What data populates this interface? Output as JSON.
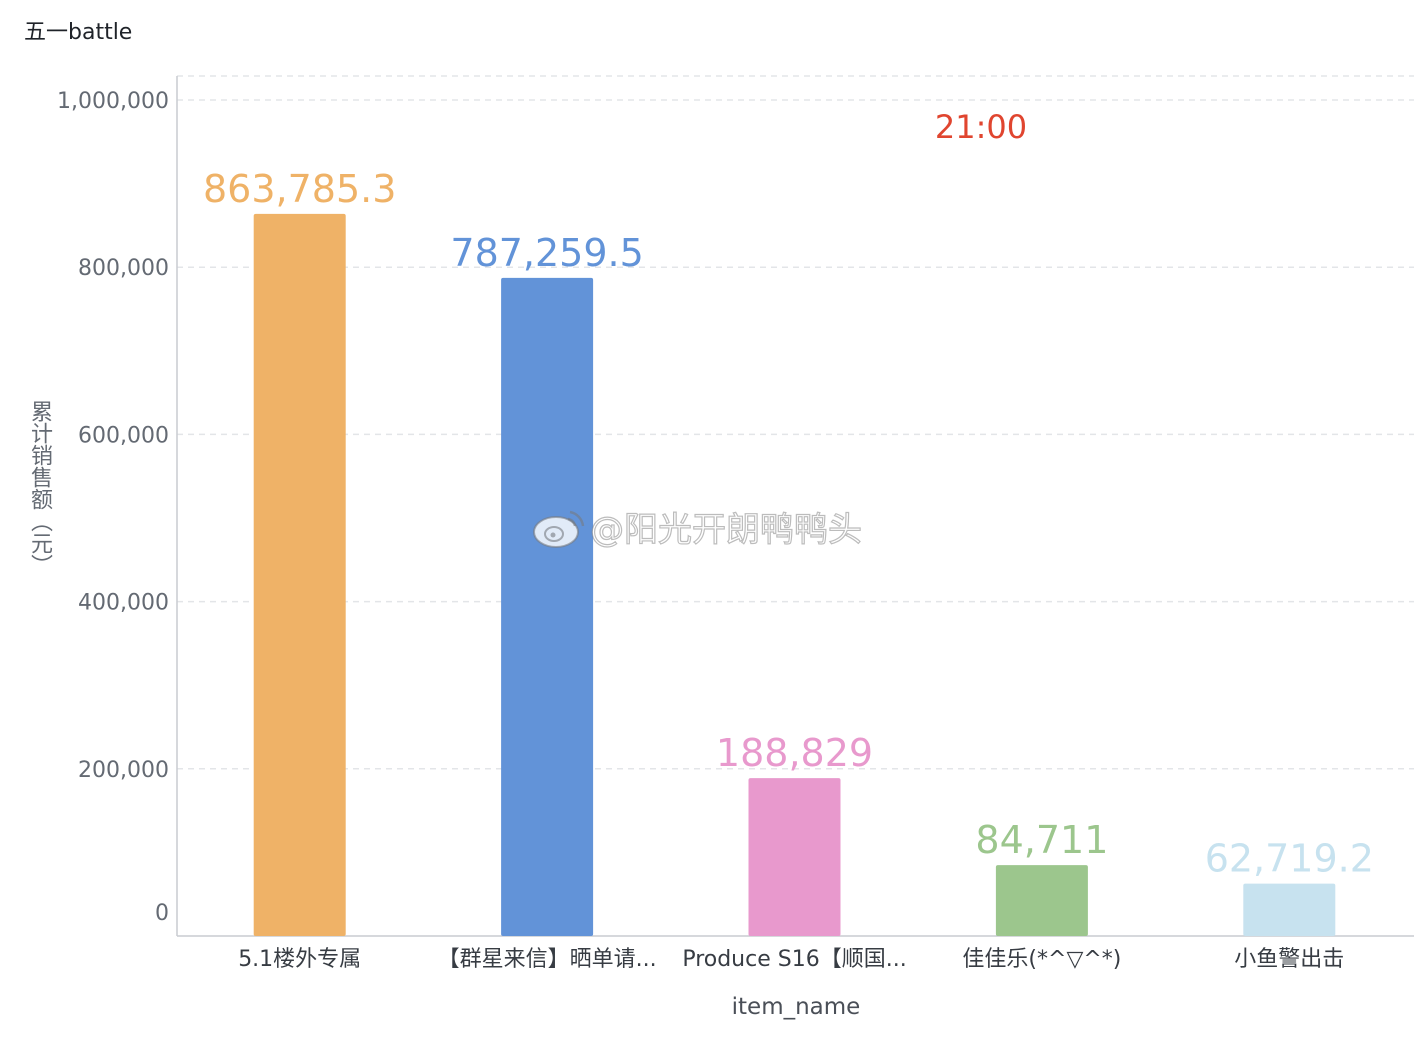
{
  "page": {
    "title": "五一battle"
  },
  "watermark": {
    "text": "@阳光开朗鸭鸭头",
    "icon": "weibo-icon"
  },
  "chart_data": {
    "type": "bar",
    "title": "五一battle",
    "time_annotation": "21:00",
    "time_annotation_color": "#e0452f",
    "xlabel": "item_name",
    "ylabel": "累计销售额（元）",
    "ylim": [
      0,
      1000000
    ],
    "y_ticks": [
      0,
      200000,
      400000,
      600000,
      800000,
      1000000
    ],
    "y_tick_labels": [
      "0",
      "200,000",
      "400,000",
      "600,000",
      "800,000",
      "1,000,000"
    ],
    "grid": true,
    "categories": [
      "5.1楼外专属",
      "【群星来信】晒单请...",
      "Produce S16【顺国...",
      "佳佳乐(*^▽^*)",
      "小鱼警出击"
    ],
    "values": [
      863785.3,
      787259.5,
      188829,
      84711,
      62719.2
    ],
    "value_labels": [
      "863,785.3",
      "787,259.5",
      "188,829",
      "84,711",
      "62,719.2"
    ],
    "colors": [
      "#efb267",
      "#6293d8",
      "#e899cd",
      "#9cc68d",
      "#c7e2ef"
    ]
  }
}
